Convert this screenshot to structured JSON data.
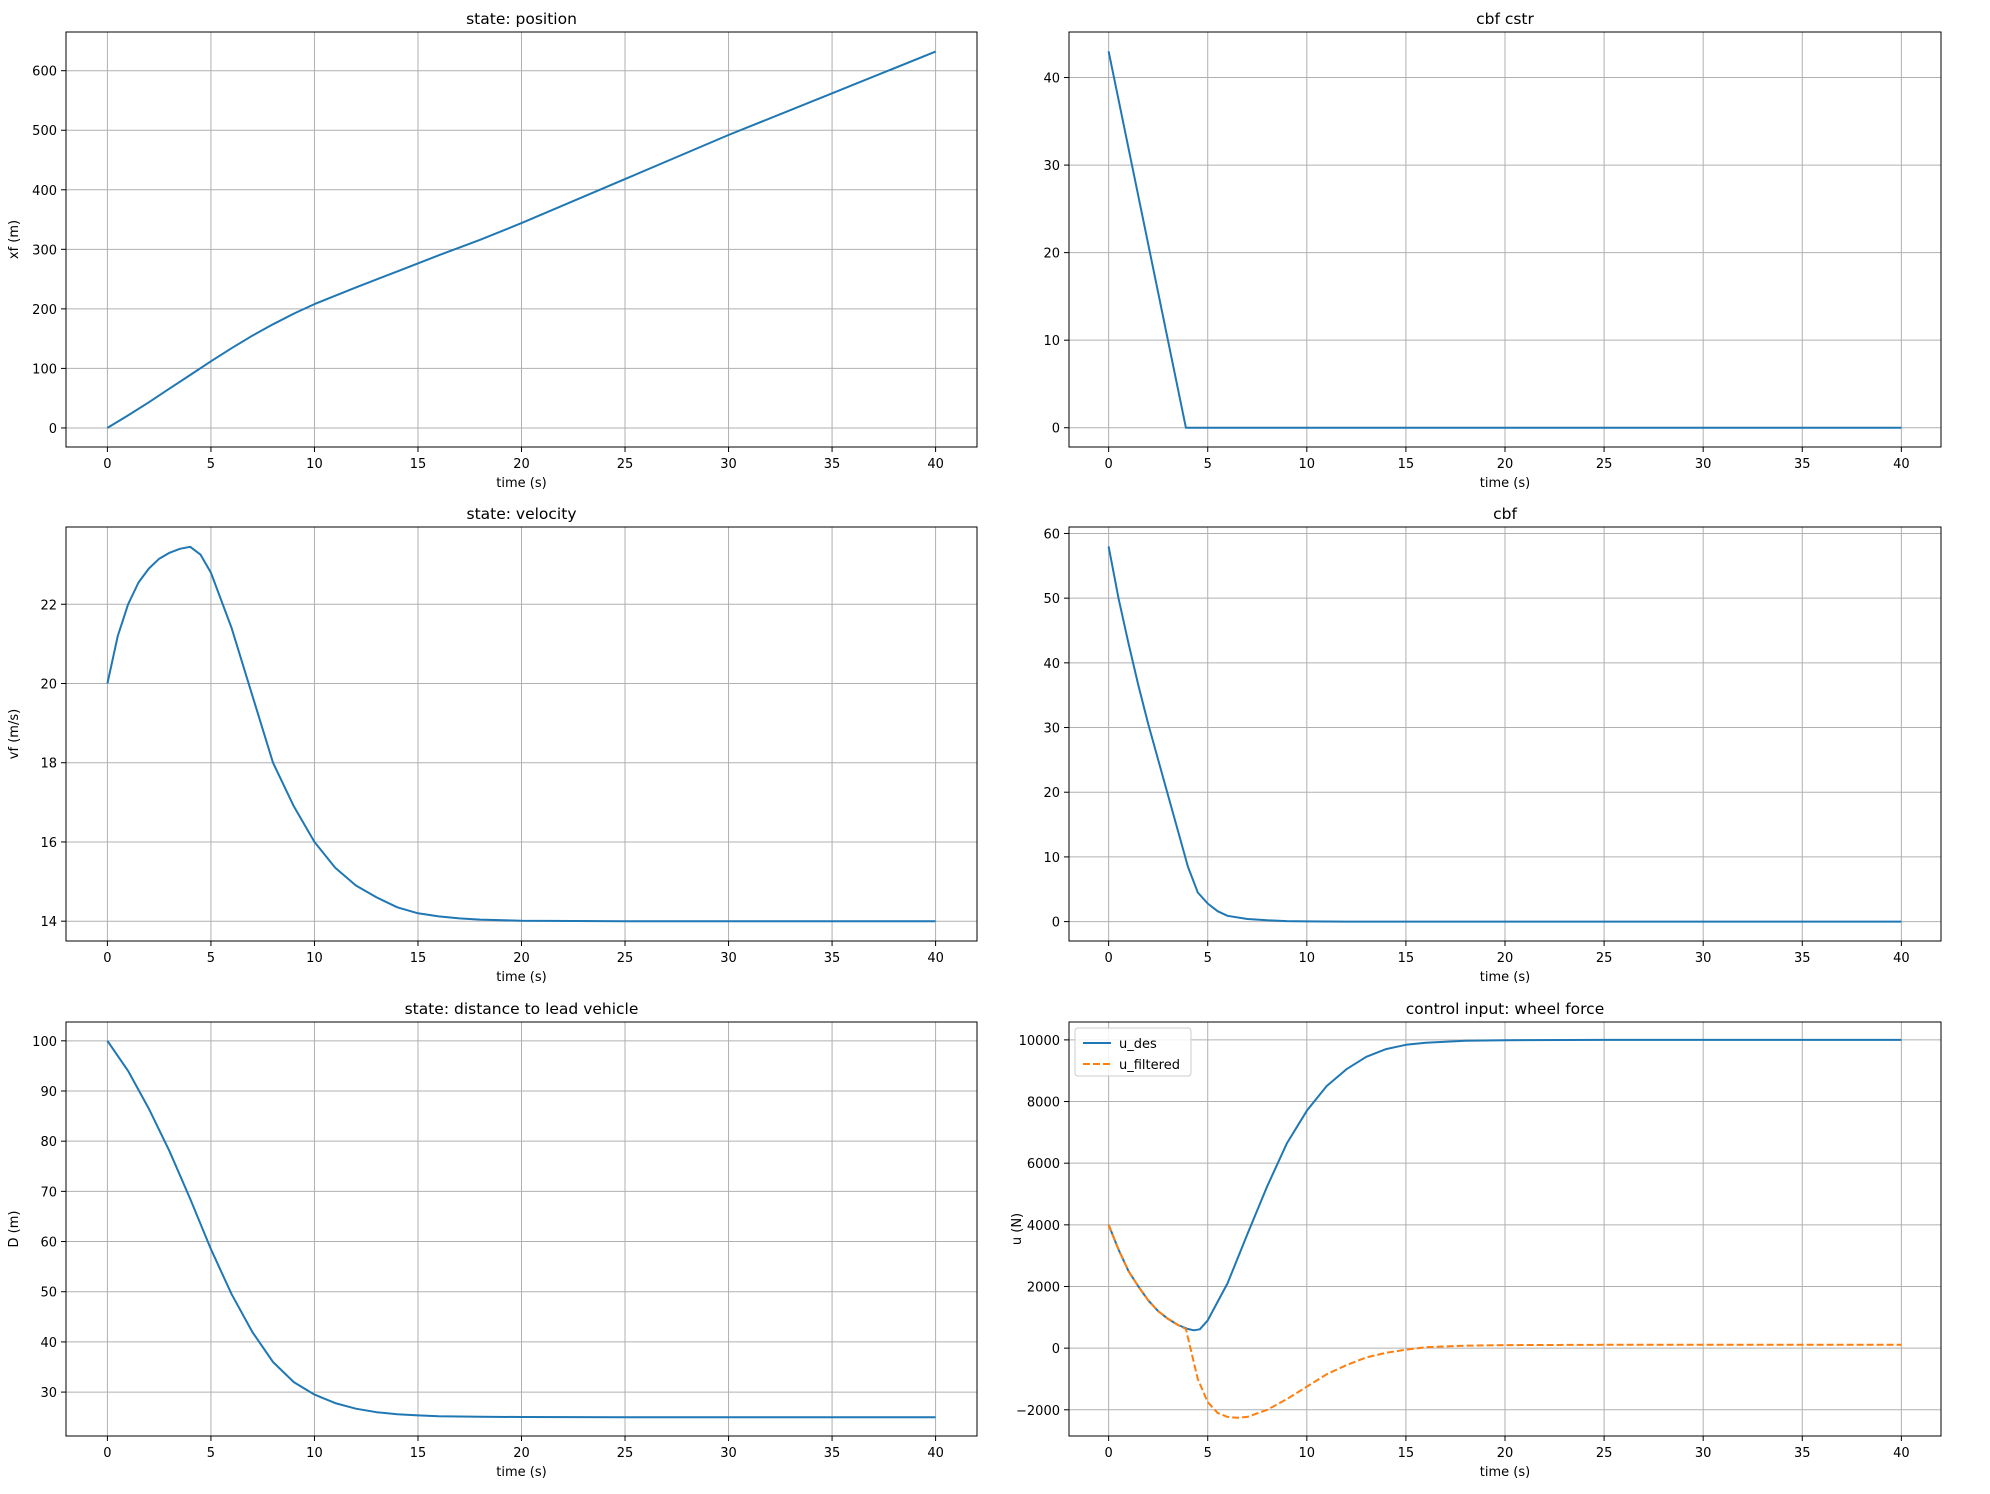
{
  "chart_data": [
    {
      "id": "position",
      "type": "line",
      "title": "state: position",
      "xlabel": "time (s)",
      "ylabel": "xf (m)",
      "xlim": [
        -2,
        42
      ],
      "ylim": [
        -32,
        665
      ],
      "xticks": [
        0,
        5,
        10,
        15,
        20,
        25,
        30,
        35,
        40
      ],
      "yticks": [
        0,
        100,
        200,
        300,
        400,
        500,
        600
      ],
      "grid": true,
      "series": [
        {
          "color": "#1f77b4",
          "dash": "solid",
          "x": [
            0,
            1,
            2,
            3,
            4,
            5,
            6,
            7,
            8,
            9,
            10,
            12,
            14,
            16,
            18,
            20,
            25,
            30,
            35,
            40
          ],
          "y": [
            0,
            21,
            43,
            66,
            89,
            112,
            134,
            155,
            174,
            192,
            208,
            236,
            263,
            290,
            316,
            344,
            418,
            492,
            562,
            632
          ]
        }
      ]
    },
    {
      "id": "cbf_cstr",
      "type": "line",
      "title": "cbf cstr",
      "xlabel": "time (s)",
      "ylabel": "",
      "xlim": [
        -2,
        42
      ],
      "ylim": [
        -2.2,
        45.2
      ],
      "xticks": [
        0,
        5,
        10,
        15,
        20,
        25,
        30,
        35,
        40
      ],
      "yticks": [
        0,
        10,
        20,
        30,
        40
      ],
      "grid": true,
      "series": [
        {
          "color": "#1f77b4",
          "dash": "solid",
          "x": [
            0,
            3.9,
            10,
            20,
            30,
            40
          ],
          "y": [
            43,
            0,
            0,
            0,
            0,
            0
          ]
        }
      ]
    },
    {
      "id": "velocity",
      "type": "line",
      "title": "state: velocity",
      "xlabel": "time (s)",
      "ylabel": "vf (m/s)",
      "xlim": [
        -2,
        42
      ],
      "ylim": [
        13.5,
        23.95
      ],
      "xticks": [
        0,
        5,
        10,
        15,
        20,
        25,
        30,
        35,
        40
      ],
      "yticks": [
        14,
        16,
        18,
        20,
        22
      ],
      "grid": true,
      "series": [
        {
          "color": "#1f77b4",
          "dash": "solid",
          "x": [
            0,
            0.5,
            1,
            1.5,
            2,
            2.5,
            3,
            3.5,
            4,
            4.5,
            5,
            6,
            7,
            8,
            9,
            10,
            11,
            12,
            13,
            14,
            15,
            16,
            17,
            18,
            20,
            25,
            30,
            35,
            40
          ],
          "y": [
            20,
            21.2,
            22.0,
            22.55,
            22.9,
            23.15,
            23.3,
            23.4,
            23.45,
            23.25,
            22.8,
            21.4,
            19.7,
            18.0,
            16.9,
            16.0,
            15.35,
            14.9,
            14.6,
            14.35,
            14.2,
            14.12,
            14.07,
            14.04,
            14.01,
            14.0,
            14.0,
            14.0,
            14.0
          ]
        }
      ]
    },
    {
      "id": "cbf",
      "type": "line",
      "title": "cbf",
      "xlabel": "time (s)",
      "ylabel": "",
      "xlim": [
        -2,
        42
      ],
      "ylim": [
        -3,
        61
      ],
      "xticks": [
        0,
        5,
        10,
        15,
        20,
        25,
        30,
        35,
        40
      ],
      "yticks": [
        0,
        10,
        20,
        30,
        40,
        50,
        60
      ],
      "grid": true,
      "series": [
        {
          "color": "#1f77b4",
          "dash": "solid",
          "x": [
            0,
            0.5,
            1,
            1.5,
            2,
            2.5,
            3,
            3.5,
            4,
            4.5,
            5,
            5.5,
            6,
            7,
            8,
            9,
            10,
            12,
            15,
            20,
            30,
            40
          ],
          "y": [
            58,
            50,
            43,
            36.5,
            30.5,
            25,
            19.5,
            14,
            8.5,
            4.5,
            2.8,
            1.6,
            0.9,
            0.4,
            0.2,
            0.08,
            0.03,
            0,
            0,
            0,
            0,
            0
          ]
        }
      ]
    },
    {
      "id": "distance",
      "type": "line",
      "title": "state: distance to lead vehicle",
      "xlabel": "time (s)",
      "ylabel": "D (m)",
      "xlim": [
        -2,
        42
      ],
      "ylim": [
        21.25,
        103.75
      ],
      "xticks": [
        0,
        5,
        10,
        15,
        20,
        25,
        30,
        35,
        40
      ],
      "yticks": [
        30,
        40,
        50,
        60,
        70,
        80,
        90,
        100
      ],
      "grid": true,
      "series": [
        {
          "color": "#1f77b4",
          "dash": "solid",
          "x": [
            0,
            1,
            2,
            3,
            4,
            5,
            6,
            7,
            8,
            9,
            10,
            11,
            12,
            13,
            14,
            15,
            16,
            18,
            20,
            25,
            30,
            35,
            40
          ],
          "y": [
            100,
            94,
            86.5,
            78,
            68.5,
            58.5,
            49.5,
            42,
            36,
            32,
            29.5,
            27.8,
            26.7,
            26.0,
            25.6,
            25.35,
            25.2,
            25.08,
            25.03,
            25.0,
            25.0,
            25.0,
            25.0
          ]
        }
      ]
    },
    {
      "id": "control",
      "type": "line",
      "title": "control input: wheel force",
      "xlabel": "time (s)",
      "ylabel": "u (N)",
      "xlim": [
        -2,
        42
      ],
      "ylim": [
        -2850,
        10580
      ],
      "xticks": [
        0,
        5,
        10,
        15,
        20,
        25,
        30,
        35,
        40
      ],
      "yticks": [
        -2000,
        0,
        2000,
        4000,
        6000,
        8000,
        10000
      ],
      "grid": true,
      "legend": "upper-left",
      "series": [
        {
          "name": "u_des",
          "color": "#1f77b4",
          "dash": "solid",
          "x": [
            0,
            0.5,
            1,
            1.5,
            2,
            2.5,
            3,
            3.5,
            4,
            4.3,
            4.6,
            5,
            6,
            7,
            8,
            9,
            10,
            11,
            12,
            13,
            14,
            15,
            16,
            18,
            20,
            25,
            30,
            35,
            40
          ],
          "y": [
            4000,
            3200,
            2500,
            2000,
            1550,
            1200,
            950,
            750,
            620,
            580,
            610,
            900,
            2100,
            3700,
            5250,
            6650,
            7700,
            8500,
            9050,
            9450,
            9700,
            9840,
            9910,
            9970,
            9990,
            10000,
            10000,
            10000,
            10000
          ]
        },
        {
          "name": "u_filtered",
          "color": "#ff7f0e",
          "dash": "dashed",
          "x": [
            0,
            0.5,
            1,
            1.5,
            2,
            2.5,
            3,
            3.5,
            3.9,
            4.2,
            4.5,
            5,
            5.5,
            6,
            6.5,
            7,
            8,
            9,
            10,
            11,
            12,
            13,
            14,
            15,
            16,
            18,
            20,
            25,
            30,
            35,
            40
          ],
          "y": [
            4000,
            3200,
            2500,
            2000,
            1550,
            1200,
            950,
            750,
            620,
            -200,
            -1000,
            -1750,
            -2100,
            -2230,
            -2260,
            -2230,
            -2000,
            -1650,
            -1250,
            -850,
            -550,
            -300,
            -150,
            -50,
            30,
            80,
            100,
            110,
            110,
            110,
            110
          ]
        }
      ]
    }
  ]
}
